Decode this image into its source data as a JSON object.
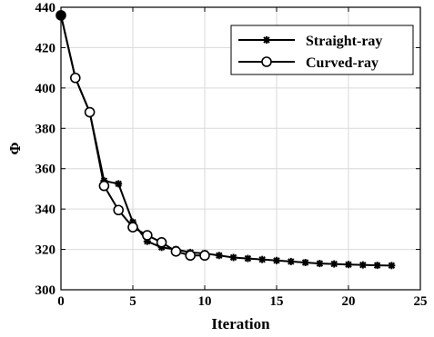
{
  "chart_data": {
    "type": "line",
    "xlabel": "Iteration",
    "ylabel": "Φ",
    "xlim": [
      0,
      25
    ],
    "ylim": [
      300,
      440
    ],
    "xticks": [
      0,
      5,
      10,
      15,
      20,
      25
    ],
    "yticks": [
      300,
      320,
      340,
      360,
      380,
      400,
      420,
      440
    ],
    "grid": true,
    "legend_position": "top-right",
    "series": [
      {
        "name": "Straight-ray",
        "marker": "asterisk",
        "color": "#000000",
        "x": [
          0,
          1,
          2,
          3,
          4,
          5,
          6,
          7,
          8,
          9,
          10,
          11,
          12,
          13,
          14,
          15,
          16,
          17,
          18,
          19,
          20,
          21,
          22,
          23
        ],
        "y": [
          436,
          405,
          388,
          354,
          352.5,
          333.5,
          324,
          321,
          320,
          318.5,
          318,
          317,
          316,
          315.5,
          315,
          314.5,
          314,
          313.5,
          313,
          312.8,
          312.5,
          312.3,
          312.1,
          312
        ]
      },
      {
        "name": "Curved-ray",
        "marker": "circle",
        "color": "#000000",
        "x": [
          0,
          1,
          2,
          3,
          4,
          5,
          6,
          7,
          8,
          9,
          10
        ],
        "y": [
          436,
          405,
          388,
          351.5,
          339.5,
          331,
          327,
          323.5,
          319,
          317,
          317
        ]
      }
    ]
  }
}
